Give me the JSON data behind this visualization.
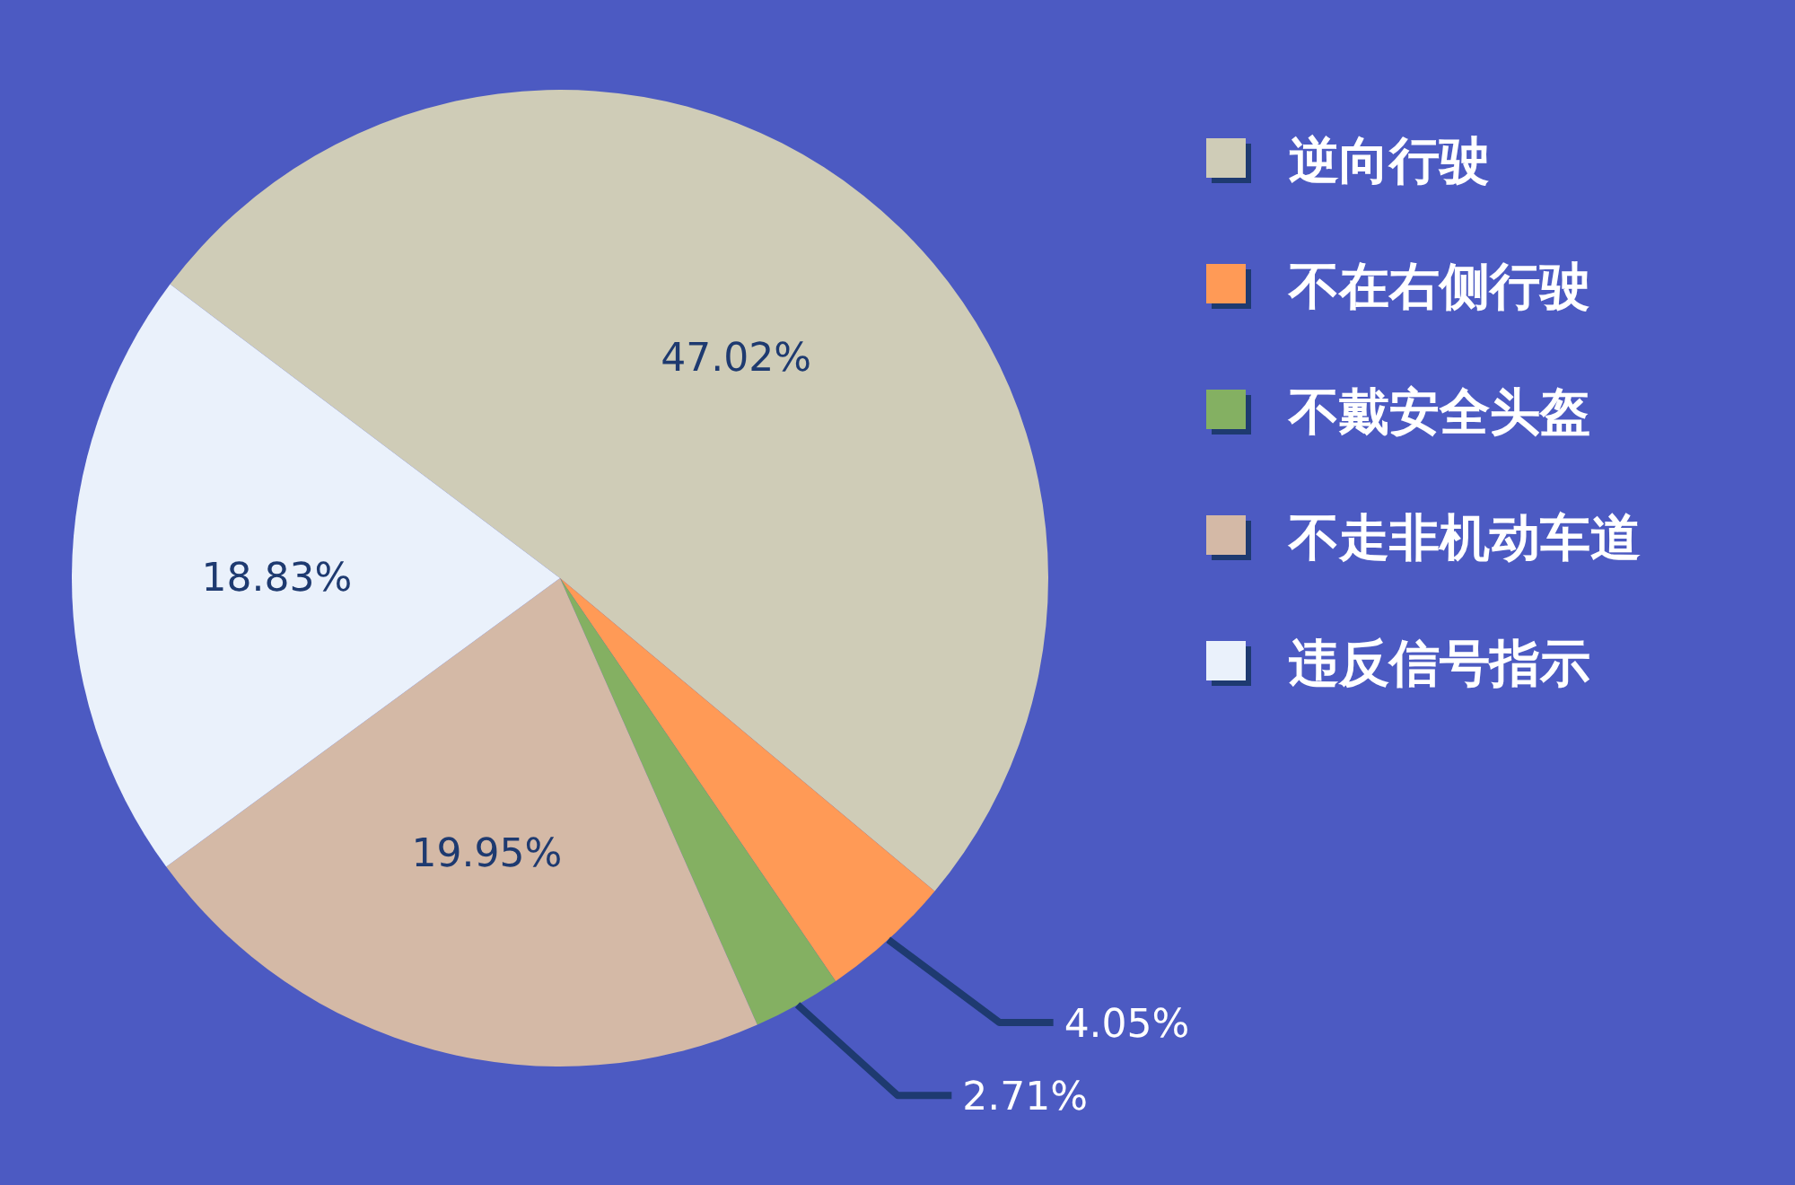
{
  "chart_data": {
    "type": "pie",
    "categories": [
      "逆向行驶",
      "不在右侧行驶",
      "不戴安全头盔",
      "不走非机动车道",
      "违反信号指示"
    ],
    "values": [
      47.02,
      4.05,
      2.71,
      19.95,
      18.83
    ],
    "colors": [
      "#cfccb7",
      "#ff9a56",
      "#84b062",
      "#d4b9a6",
      "#eaf1fb"
    ],
    "value_labels": [
      "47.02%",
      "4.05%",
      "2.71%",
      "19.95%",
      "18.83%"
    ],
    "legend": "right"
  }
}
